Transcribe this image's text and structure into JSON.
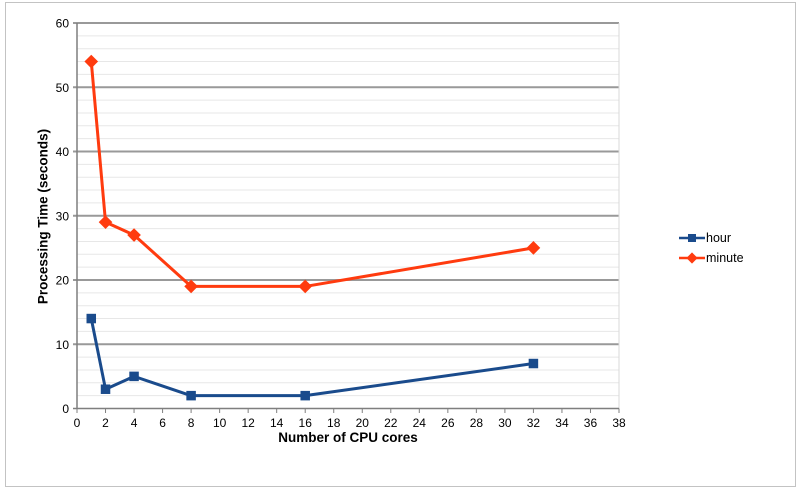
{
  "chart_data": {
    "type": "line",
    "title": "",
    "xlabel": "Number of CPU cores",
    "ylabel": "Processing Time (seconds)",
    "xlim": [
      0,
      38
    ],
    "ylim": [
      0,
      60
    ],
    "x_tick_step": 2,
    "y_tick_step": 10,
    "y_minor_step": 2,
    "grid": "horizontal major and minor gridlines, no vertical gridlines",
    "legend_position": "right-middle",
    "x": [
      1,
      2,
      4,
      8,
      16,
      32
    ],
    "series": [
      {
        "name": "hour",
        "marker": "square",
        "color": "#1A4B8C",
        "values": [
          14,
          3,
          5,
          2,
          2,
          7
        ]
      },
      {
        "name": "minute",
        "marker": "diamond",
        "color": "#FF3B0F",
        "values": [
          54,
          29,
          27,
          19,
          19,
          25
        ]
      }
    ],
    "colors": {
      "background": "#ffffff",
      "grid_major": "#999999",
      "grid_minor": "#e7e7e7",
      "axis": "#7f7f7f",
      "plot_border": "#d9d9d9",
      "text": "#000000",
      "frame_border": "#c3c3c3"
    }
  }
}
